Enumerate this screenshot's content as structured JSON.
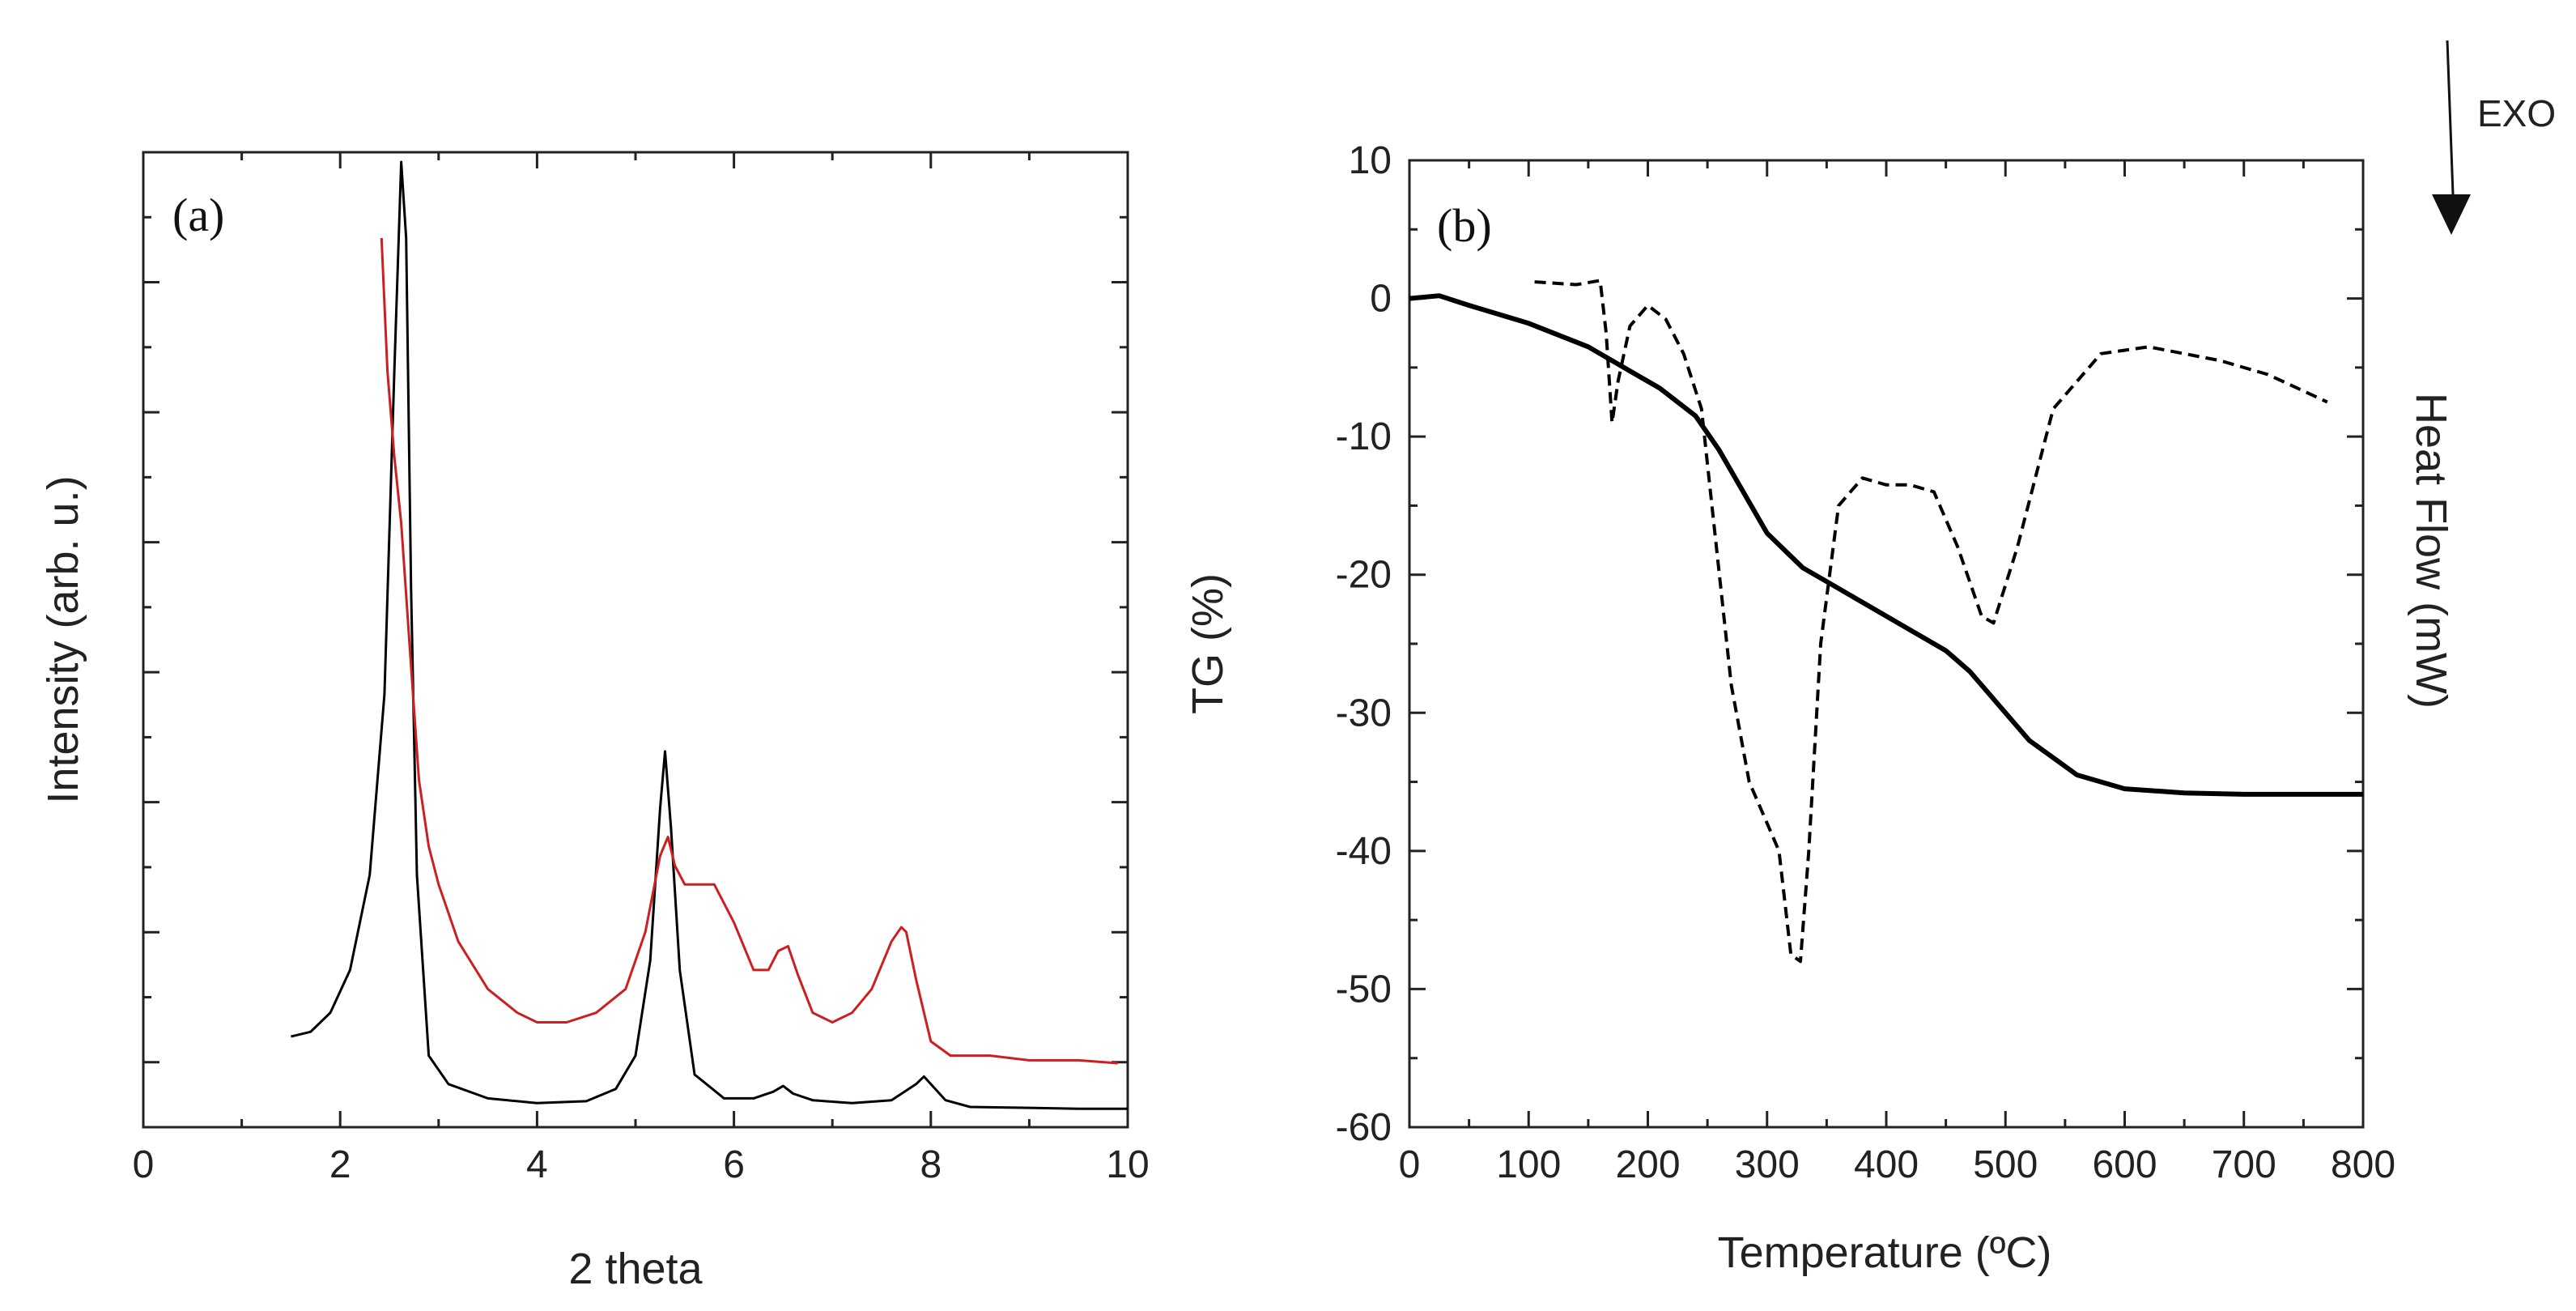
{
  "figure": {
    "exo_label": "EXO",
    "panel_a_label": "(a)",
    "panel_b_label": "(b)"
  },
  "chart_data": [
    {
      "type": "line",
      "panel": "(a)",
      "title": "",
      "xlabel": "2 theta",
      "ylabel": "Intensity (arb. u.)",
      "xlim": [
        0,
        10
      ],
      "ylim": [
        0,
        100
      ],
      "xticks": [
        "0",
        "2",
        "4",
        "6",
        "8",
        "10"
      ],
      "x_minor_ticks": [
        1,
        3,
        5,
        7,
        9
      ],
      "y_tick_labels_shown": false,
      "series": [
        {
          "name": "black",
          "color": "#000000",
          "dash": "solid",
          "x": [
            1.5,
            1.7,
            1.9,
            2.1,
            2.3,
            2.45,
            2.55,
            2.62,
            2.67,
            2.72,
            2.78,
            2.9,
            3.1,
            3.5,
            4.0,
            4.5,
            4.8,
            5.0,
            5.15,
            5.25,
            5.3,
            5.36,
            5.45,
            5.6,
            5.9,
            6.2,
            6.4,
            6.5,
            6.6,
            6.8,
            7.2,
            7.6,
            7.85,
            7.93,
            8.0,
            8.15,
            8.4,
            9.0,
            9.5,
            10.0
          ],
          "y": [
            8.0,
            8.5,
            10.5,
            15.0,
            25.0,
            44.0,
            78.0,
            100.0,
            92.0,
            55.0,
            25.0,
            6.0,
            3.0,
            1.5,
            1.0,
            1.2,
            2.5,
            6.0,
            16.0,
            32.0,
            38.0,
            30.0,
            15.0,
            4.0,
            1.5,
            1.5,
            2.2,
            2.8,
            2.0,
            1.3,
            1.0,
            1.3,
            3.0,
            3.8,
            3.0,
            1.3,
            0.6,
            0.5,
            0.4,
            0.4
          ]
        },
        {
          "name": "red",
          "color": "#cc1f1f",
          "dash": "solid",
          "x": [
            2.42,
            2.48,
            2.55,
            2.62,
            2.7,
            2.8,
            2.9,
            3.0,
            3.2,
            3.5,
            3.8,
            4.0,
            4.3,
            4.6,
            4.9,
            5.1,
            5.25,
            5.33,
            5.4,
            5.5,
            5.65,
            5.8,
            6.0,
            6.2,
            6.35,
            6.45,
            6.55,
            6.65,
            6.8,
            7.0,
            7.2,
            7.4,
            7.6,
            7.7,
            7.75,
            7.85,
            8.0,
            8.2,
            8.6,
            9.0,
            9.5,
            9.9
          ],
          "y": [
            92.0,
            78.0,
            69.0,
            62.0,
            50.0,
            35.0,
            28.0,
            24.0,
            18.0,
            13.0,
            10.5,
            9.5,
            9.5,
            10.5,
            13.0,
            19.0,
            27.0,
            29.0,
            26.0,
            24.0,
            24.0,
            24.0,
            20.0,
            15.0,
            15.0,
            17.0,
            17.5,
            14.5,
            10.5,
            9.5,
            10.5,
            13.0,
            18.0,
            19.5,
            19.0,
            14.0,
            7.5,
            6.0,
            6.0,
            5.5,
            5.5,
            5.2
          ]
        }
      ]
    },
    {
      "type": "line",
      "panel": "(b)",
      "title": "",
      "xlabel": "Temperature (ºC)",
      "ylabel": "TG (%)",
      "y2label": "Heat Flow (mW)",
      "xlim": [
        0,
        800
      ],
      "ylim": [
        -60,
        10
      ],
      "xticks": [
        "0",
        "100",
        "200",
        "300",
        "400",
        "500",
        "600",
        "700",
        "800"
      ],
      "yticks": [
        "10",
        "0",
        "-10",
        "-20",
        "-30",
        "-40",
        "-50",
        "-60"
      ],
      "series": [
        {
          "name": "TG",
          "axis": "left",
          "color": "#000000",
          "dash": "solid",
          "x": [
            0,
            25,
            50,
            100,
            150,
            180,
            210,
            240,
            260,
            280,
            300,
            330,
            350,
            400,
            450,
            470,
            490,
            520,
            560,
            600,
            650,
            700,
            750,
            800
          ],
          "y": [
            0.0,
            0.2,
            -0.5,
            -1.8,
            -3.5,
            -5.0,
            -6.5,
            -8.5,
            -11.0,
            -14.0,
            -17.0,
            -19.5,
            -20.5,
            -23.0,
            -25.5,
            -27.0,
            -29.0,
            -32.0,
            -34.5,
            -35.5,
            -35.8,
            -35.9,
            -35.9,
            -35.9
          ]
        },
        {
          "name": "Heat Flow",
          "axis": "right",
          "color": "#000000",
          "dash": "dashed",
          "x": [
            105,
            140,
            160,
            165,
            170,
            175,
            185,
            200,
            215,
            230,
            245,
            255,
            270,
            285,
            300,
            310,
            320,
            328,
            335,
            345,
            360,
            380,
            400,
            420,
            440,
            460,
            480,
            490,
            510,
            540,
            580,
            620,
            680,
            720,
            770
          ],
          "y": [
            1.2,
            1.0,
            1.3,
            -2.5,
            -9.0,
            -6.0,
            -2.0,
            -0.5,
            -1.5,
            -4.0,
            -8.0,
            -16.0,
            -28.0,
            -35.0,
            -38.0,
            -40.0,
            -47.5,
            -48.0,
            -40.0,
            -25.0,
            -15.0,
            -13.0,
            -13.5,
            -13.5,
            -14.0,
            -18.0,
            -23.0,
            -23.5,
            -18.0,
            -8.0,
            -4.0,
            -3.5,
            -4.5,
            -5.5,
            -7.5
          ]
        }
      ]
    }
  ]
}
